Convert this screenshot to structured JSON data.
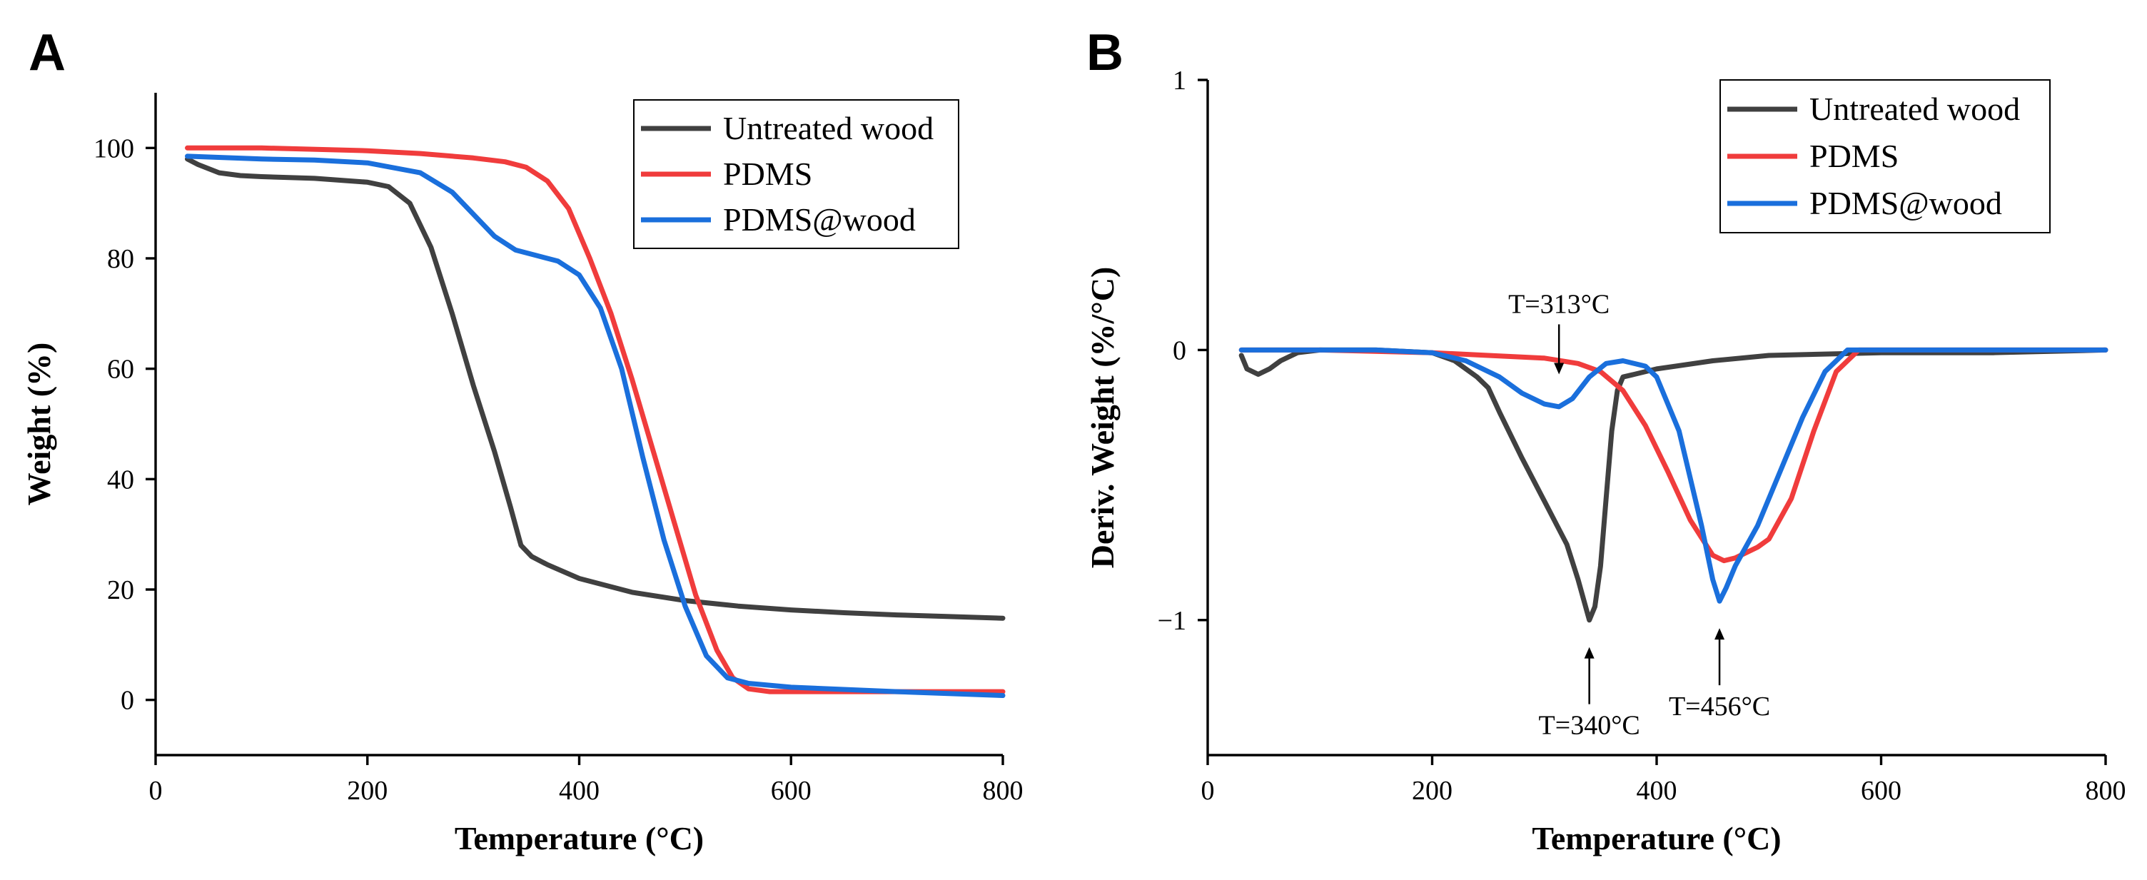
{
  "chart_data": [
    {
      "type": "line",
      "panel_label": "A",
      "title": "",
      "xlabel": "Temperature (°C)",
      "ylabel": "Weight (%)",
      "xlim": [
        0,
        800
      ],
      "ylim": [
        -10,
        110
      ],
      "xticks": [
        0,
        200,
        400,
        600,
        800
      ],
      "yticks": [
        0,
        20,
        40,
        60,
        80,
        100
      ],
      "legend_position": "top-right",
      "series": [
        {
          "name": "Untreated wood",
          "color": "#404040",
          "x": [
            30,
            40,
            60,
            80,
            100,
            150,
            200,
            220,
            240,
            260,
            280,
            300,
            320,
            335,
            345,
            355,
            360,
            370,
            400,
            450,
            500,
            550,
            600,
            650,
            700,
            750,
            800
          ],
          "y": [
            98,
            97,
            95.5,
            95,
            94.8,
            94.5,
            93.8,
            93,
            90,
            82,
            70,
            57,
            45,
            35,
            28,
            26,
            25.5,
            24.5,
            22,
            19.5,
            18,
            17,
            16.3,
            15.8,
            15.4,
            15.1,
            14.8
          ]
        },
        {
          "name": "PDMS",
          "color": "#f03c3c",
          "x": [
            30,
            100,
            200,
            250,
            300,
            330,
            350,
            370,
            390,
            410,
            430,
            450,
            470,
            490,
            510,
            530,
            545,
            560,
            580,
            600,
            700,
            800
          ],
          "y": [
            100,
            100,
            99.5,
            99,
            98.2,
            97.5,
            96.5,
            94,
            89,
            80,
            70,
            58,
            45,
            32,
            19,
            9,
            4,
            2,
            1.5,
            1.5,
            1.5,
            1.5
          ]
        },
        {
          "name": "PDMS@wood",
          "color": "#1a6fdc",
          "x": [
            30,
            100,
            150,
            200,
            250,
            280,
            300,
            320,
            340,
            360,
            380,
            400,
            420,
            440,
            460,
            480,
            500,
            520,
            540,
            560,
            600,
            700,
            800
          ],
          "y": [
            98.5,
            98,
            97.8,
            97.3,
            95.5,
            92,
            88,
            84,
            81.5,
            80.5,
            79.5,
            77,
            71,
            60,
            44,
            29,
            17,
            8,
            4,
            3,
            2.3,
            1.5,
            0.8
          ]
        }
      ]
    },
    {
      "type": "line",
      "panel_label": "B",
      "title": "",
      "xlabel": "Temperature (°C)",
      "ylabel": "Deriv. Weight (%/°C)",
      "xlim": [
        0,
        800
      ],
      "ylim": [
        -1.5,
        1
      ],
      "xticks": [
        0,
        200,
        400,
        600,
        800
      ],
      "yticks": [
        -1,
        0,
        1
      ],
      "ytick_labels": [
        "−1",
        "0",
        "1"
      ],
      "legend_position": "top-right",
      "series": [
        {
          "name": "Untreated wood",
          "color": "#404040",
          "x": [
            30,
            35,
            45,
            55,
            65,
            80,
            100,
            150,
            200,
            220,
            240,
            250,
            260,
            280,
            300,
            320,
            330,
            340,
            345,
            350,
            355,
            360,
            365,
            370,
            380,
            400,
            450,
            500,
            600,
            700,
            800
          ],
          "y": [
            -0.02,
            -0.07,
            -0.09,
            -0.07,
            -0.04,
            -0.01,
            0,
            0,
            -0.01,
            -0.04,
            -0.1,
            -0.14,
            -0.23,
            -0.4,
            -0.56,
            -0.72,
            -0.85,
            -1.0,
            -0.95,
            -0.8,
            -0.55,
            -0.3,
            -0.15,
            -0.1,
            -0.09,
            -0.07,
            -0.04,
            -0.02,
            -0.01,
            -0.01,
            0
          ]
        },
        {
          "name": "PDMS",
          "color": "#f03c3c",
          "x": [
            30,
            100,
            200,
            250,
            300,
            330,
            350,
            370,
            390,
            410,
            430,
            450,
            460,
            470,
            480,
            490,
            500,
            520,
            540,
            560,
            580,
            600,
            700,
            800
          ],
          "y": [
            0,
            0,
            -0.01,
            -0.02,
            -0.03,
            -0.05,
            -0.08,
            -0.15,
            -0.28,
            -0.45,
            -0.63,
            -0.76,
            -0.78,
            -0.77,
            -0.75,
            -0.73,
            -0.7,
            -0.55,
            -0.3,
            -0.08,
            0,
            0,
            0,
            0
          ]
        },
        {
          "name": "PDMS@wood",
          "color": "#1a6fdc",
          "x": [
            30,
            100,
            150,
            200,
            230,
            260,
            280,
            300,
            313,
            325,
            340,
            355,
            370,
            390,
            400,
            420,
            440,
            450,
            456,
            462,
            470,
            490,
            510,
            530,
            550,
            570,
            600,
            700,
            800
          ],
          "y": [
            0,
            0,
            0,
            -0.01,
            -0.04,
            -0.1,
            -0.16,
            -0.2,
            -0.21,
            -0.18,
            -0.1,
            -0.05,
            -0.04,
            -0.06,
            -0.1,
            -0.3,
            -0.65,
            -0.85,
            -0.93,
            -0.88,
            -0.8,
            -0.65,
            -0.45,
            -0.25,
            -0.08,
            0,
            0,
            0,
            0
          ]
        }
      ],
      "annotations": [
        {
          "text": "T=313°C",
          "x": 313,
          "y": -0.09,
          "label_side": "above"
        },
        {
          "text": "T=340°C",
          "x": 340,
          "y": -1.1,
          "label_side": "below"
        },
        {
          "text": "T=456°C",
          "x": 456,
          "y": -1.03,
          "label_side": "below"
        }
      ]
    }
  ]
}
